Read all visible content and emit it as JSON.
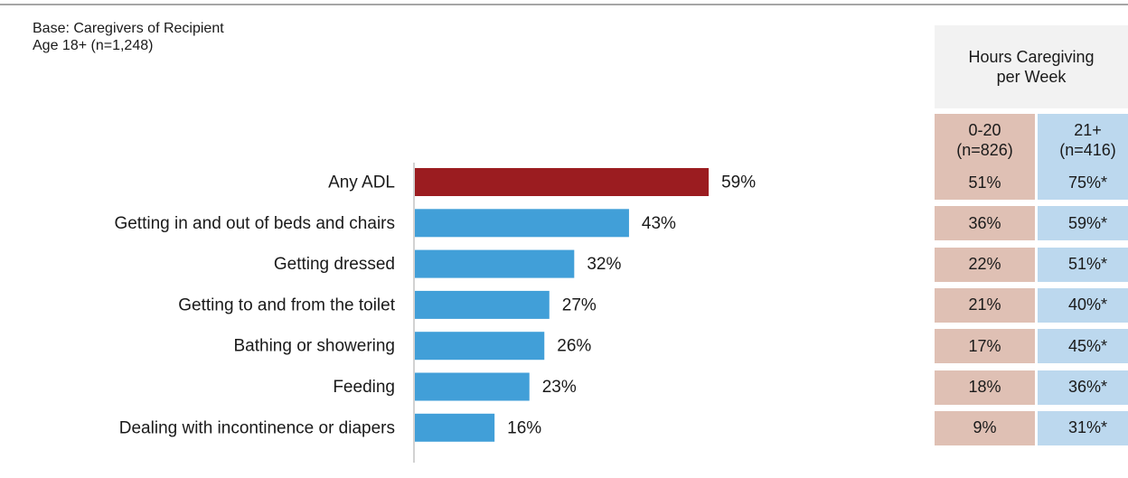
{
  "base_note": {
    "line1": "Base: Caregivers of Recipient",
    "line2": "Age 18+ (n=1,248)"
  },
  "colors": {
    "highlight_bar": "#9b1c20",
    "bar": "#419fd8",
    "pink_cell": "#dfc0b4",
    "blue_cell": "#bcd8ee",
    "header_bg": "#f2f2f2"
  },
  "chart_data": {
    "type": "bar",
    "orientation": "horizontal",
    "categories": [
      "Any ADL",
      "Getting in and out of beds and chairs",
      "Getting dressed",
      "Getting to and from the toilet",
      "Bathing or showering",
      "Feeding",
      "Dealing with incontinence or diapers"
    ],
    "values": [
      59,
      43,
      32,
      27,
      26,
      23,
      16
    ],
    "data_labels": [
      "59%",
      "43%",
      "32%",
      "27%",
      "26%",
      "23%",
      "16%"
    ],
    "highlight_index": 0,
    "xlim": [
      0,
      100
    ],
    "grid": false,
    "title": "",
    "xlabel": "",
    "ylabel": ""
  },
  "table": {
    "header": "Hours Caregiving per Week",
    "columns": [
      {
        "label_line1": "0-20",
        "label_line2": "(n=826)",
        "values": [
          "51%",
          "36%",
          "22%",
          "21%",
          "17%",
          "18%",
          "9%"
        ]
      },
      {
        "label_line1": "21+",
        "label_line2": "(n=416)",
        "values": [
          "75%*",
          "59%*",
          "51%*",
          "40%*",
          "45%*",
          "36%*",
          "31%*"
        ]
      }
    ]
  }
}
